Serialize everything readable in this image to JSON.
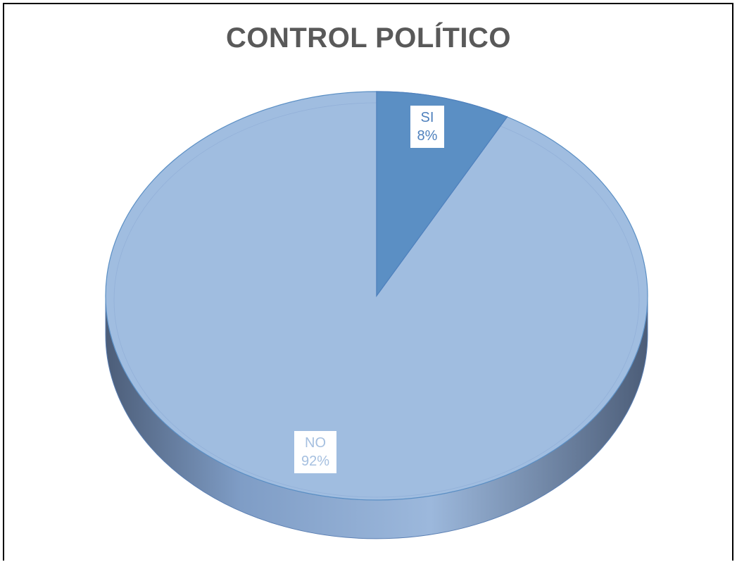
{
  "chart_data": {
    "type": "pie",
    "title": "CONTROL POLÍTICO",
    "slices": [
      {
        "label": "SI",
        "value": 8,
        "display": "8%",
        "color": "#5b8fc4"
      },
      {
        "label": "NO",
        "value": 92,
        "display": "92%",
        "color": "#a0bde0"
      }
    ]
  }
}
